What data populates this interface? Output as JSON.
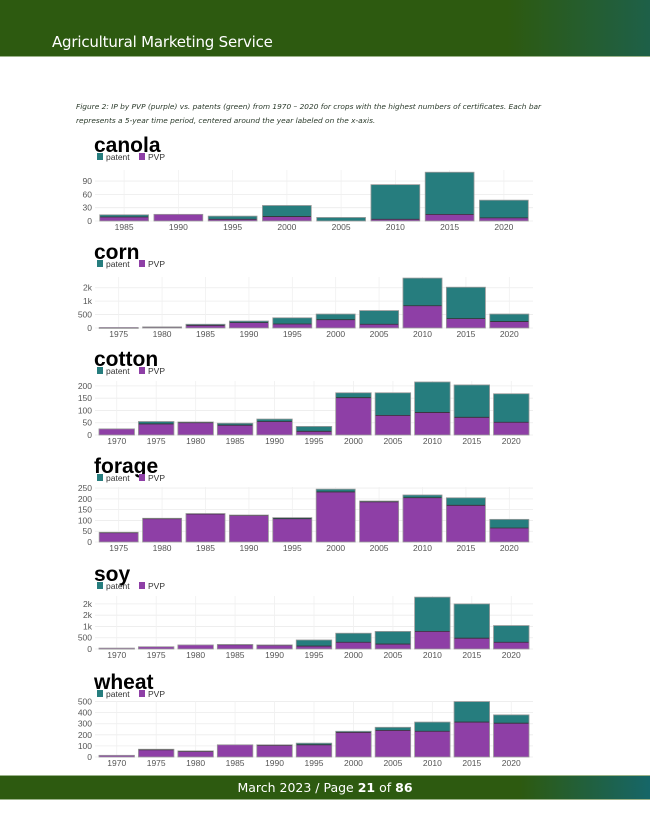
{
  "header": {
    "title": "Agricultural Marketing Service"
  },
  "caption": "Figure 2: IP by PVP (purple) vs. patents (green) from 1970 – 2020 for crops with the highest numbers of certificates. Each bar represents a 5-year time period, centered around the year labeled on the x-axis.",
  "footer": {
    "prefix": "March 2023 / Page ",
    "page": "21",
    "of": " of ",
    "total": "86"
  },
  "colors": {
    "patent": "#267d7e",
    "pvp": "#8e3fa6",
    "header_green": "#2d5a10"
  },
  "chart_data": [
    {
      "type": "bar",
      "stacked": true,
      "title": "canola",
      "legend": [
        "patent",
        "PVP"
      ],
      "legend_placement": "top-left",
      "categories": [
        "1985",
        "1990",
        "1995",
        "2000",
        "2005",
        "2010",
        "2015",
        "2020"
      ],
      "series": [
        {
          "name": "PVP",
          "values": [
            9,
            15,
            4,
            10,
            0,
            4,
            15,
            7
          ]
        },
        {
          "name": "patent",
          "values": [
            5,
            0,
            7,
            25,
            8,
            78,
            95,
            40
          ]
        }
      ],
      "yticks": [
        0,
        30,
        60,
        90
      ],
      "ytick_labels": [
        "0",
        "30",
        "60",
        "90"
      ],
      "ylim": [
        0,
        115
      ]
    },
    {
      "type": "bar",
      "stacked": true,
      "title": "corn",
      "legend": [
        "patent",
        "PVP"
      ],
      "legend_placement": "top-left",
      "categories": [
        "1975",
        "1980",
        "1985",
        "1990",
        "1995",
        "2000",
        "2005",
        "2010",
        "2015",
        "2020"
      ],
      "series": [
        {
          "name": "PVP",
          "values": [
            20,
            35,
            100,
            200,
            150,
            310,
            140,
            830,
            350,
            240
          ]
        },
        {
          "name": "patent",
          "values": [
            0,
            5,
            40,
            60,
            230,
            210,
            510,
            1030,
            1170,
            280
          ]
        }
      ],
      "yticks": [
        0,
        500,
        1000,
        1500
      ],
      "ytick_labels": [
        "0",
        "500",
        "1k",
        "2k"
      ],
      "ylim": [
        0,
        1900
      ]
    },
    {
      "type": "bar",
      "stacked": true,
      "title": "cotton",
      "legend": [
        "patent",
        "PVP"
      ],
      "legend_placement": "top-left",
      "categories": [
        "1970",
        "1975",
        "1980",
        "1985",
        "1990",
        "1995",
        "2000",
        "2005",
        "2010",
        "2015",
        "2020"
      ],
      "series": [
        {
          "name": "PVP",
          "values": [
            25,
            45,
            50,
            40,
            55,
            15,
            152,
            80,
            92,
            72,
            52
          ]
        },
        {
          "name": "patent",
          "values": [
            0,
            10,
            3,
            8,
            10,
            20,
            20,
            92,
            124,
            132,
            116
          ]
        }
      ],
      "yticks": [
        0,
        50,
        100,
        150,
        200
      ],
      "ytick_labels": [
        "0",
        "50",
        "100",
        "150",
        "200"
      ],
      "ylim": [
        0,
        220
      ]
    },
    {
      "type": "bar",
      "stacked": true,
      "title": "forage",
      "legend": [
        "patent",
        "PVP"
      ],
      "legend_placement": "top-left",
      "categories": [
        "1975",
        "1980",
        "1985",
        "1990",
        "1995",
        "2000",
        "2005",
        "2010",
        "2015",
        "2020"
      ],
      "series": [
        {
          "name": "PVP",
          "values": [
            43,
            108,
            130,
            123,
            108,
            232,
            186,
            205,
            170,
            65
          ]
        },
        {
          "name": "patent",
          "values": [
            2,
            2,
            2,
            2,
            5,
            13,
            4,
            13,
            35,
            40
          ]
        }
      ],
      "yticks": [
        0,
        50,
        100,
        150,
        200,
        250
      ],
      "ytick_labels": [
        "0",
        "50",
        "100",
        "150",
        "200",
        "250"
      ],
      "ylim": [
        0,
        255
      ]
    },
    {
      "type": "bar",
      "stacked": true,
      "title": "soy",
      "legend": [
        "patent",
        "PVP"
      ],
      "legend_placement": "top-left",
      "categories": [
        "1970",
        "1975",
        "1980",
        "1985",
        "1990",
        "1995",
        "2000",
        "2005",
        "2010",
        "2015",
        "2020"
      ],
      "series": [
        {
          "name": "PVP",
          "values": [
            40,
            100,
            180,
            190,
            170,
            130,
            300,
            220,
            780,
            480,
            300
          ]
        },
        {
          "name": "patent",
          "values": [
            0,
            0,
            0,
            10,
            10,
            270,
            400,
            560,
            1520,
            1520,
            740
          ]
        }
      ],
      "yticks": [
        0,
        500,
        1000,
        1500,
        2000
      ],
      "ytick_labels": [
        "0",
        "500",
        "1k",
        "2k",
        "2k"
      ],
      "ylim": [
        0,
        2350
      ]
    },
    {
      "type": "bar",
      "stacked": true,
      "title": "wheat",
      "legend": [
        "patent",
        "PVP"
      ],
      "legend_placement": "top-left",
      "categories": [
        "1970",
        "1975",
        "1980",
        "1985",
        "1990",
        "1995",
        "2000",
        "2005",
        "2010",
        "2015",
        "2020"
      ],
      "series": [
        {
          "name": "PVP",
          "values": [
            15,
            65,
            50,
            110,
            105,
            110,
            222,
            240,
            232,
            315,
            305
          ]
        },
        {
          "name": "patent",
          "values": [
            0,
            5,
            5,
            0,
            5,
            15,
            10,
            28,
            83,
            185,
            75
          ]
        }
      ],
      "yticks": [
        0,
        100,
        200,
        300,
        400,
        500
      ],
      "ytick_labels": [
        "0",
        "100",
        "200",
        "300",
        "400",
        "500"
      ],
      "ylim": [
        0,
        505
      ]
    }
  ]
}
